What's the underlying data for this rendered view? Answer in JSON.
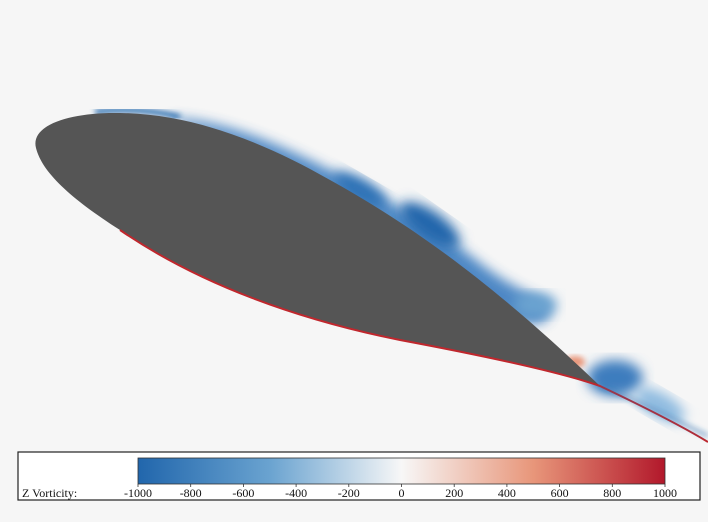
{
  "colorbar": {
    "label": "Z Vorticity:",
    "lim": [
      -1000,
      1000
    ],
    "ticks": [
      -1000,
      -800,
      -600,
      -400,
      -200,
      0,
      200,
      400,
      600,
      800,
      1000
    ],
    "colors": [
      "#2166ac",
      "#6aa3d0",
      "#f7f7f7",
      "#e8967a",
      "#b2182b"
    ]
  }
}
